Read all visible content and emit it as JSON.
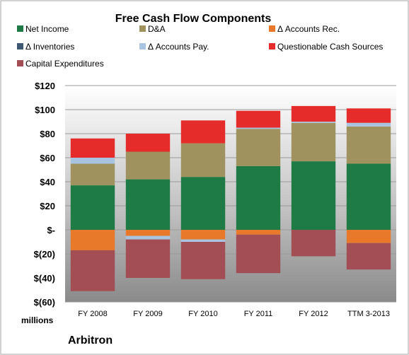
{
  "chart_data": {
    "type": "bar",
    "stacked": true,
    "title": "Free Cash Flow Components",
    "ylabel": "millions",
    "company": "Arbitron",
    "ylim": [
      -60,
      120
    ],
    "yticks": [
      120,
      100,
      80,
      60,
      40,
      20,
      0,
      -20,
      -40,
      -60
    ],
    "ytick_labels": [
      "$120",
      "$100",
      "$80",
      "$60",
      "$40",
      "$20",
      "$-",
      "$(20)",
      "$(40)",
      "$(60)"
    ],
    "categories": [
      "FY 2008",
      "FY 2009",
      "FY 2010",
      "FY 2011",
      "FY 2012",
      "TTM 3-2013"
    ],
    "legend_position": "top",
    "grid": true,
    "series": [
      {
        "name": "Net Income",
        "color": "#1e7b45",
        "values": [
          37,
          42,
          44,
          53,
          57,
          55
        ]
      },
      {
        "name": "D&A",
        "color": "#a0925f",
        "values": [
          18,
          23,
          28,
          31,
          32,
          31
        ]
      },
      {
        "name": "Δ Accounts Rec.",
        "color": "#e8782a",
        "values": [
          -17,
          -5,
          -8,
          -4,
          0,
          -11
        ]
      },
      {
        "name": "Δ Inventories",
        "color": "#3c5873",
        "values": [
          0,
          0,
          0,
          0,
          0,
          0
        ]
      },
      {
        "name": "Δ Accounts Pay.",
        "color": "#a9c4e0",
        "values": [
          5,
          0,
          0,
          1,
          1,
          3
        ]
      },
      {
        "name": "Questionable Cash Sources",
        "color": "#e62b2b",
        "values": [
          16,
          15,
          19,
          14,
          13,
          12
        ]
      },
      {
        "name": "Capital Expenditures",
        "color": "#a34e54",
        "values": [
          -34,
          -32,
          -31,
          -32,
          -22,
          -22
        ]
      }
    ],
    "neg_extra": [
      {
        "series": "Δ Accounts Pay.",
        "values": [
          0,
          -3,
          -2,
          0,
          0,
          0
        ]
      }
    ]
  }
}
